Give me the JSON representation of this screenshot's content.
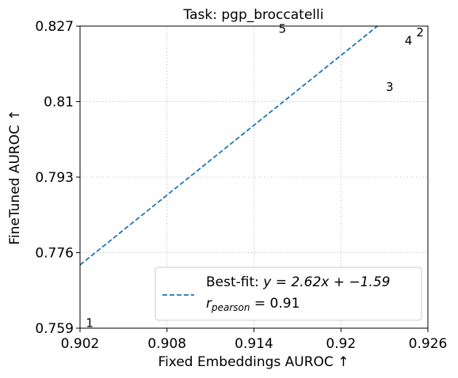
{
  "chart_data": {
    "type": "scatter",
    "title": "Task: pgp_broccatelli",
    "xlabel": "Fixed Embeddings AUROC ↑",
    "ylabel": "FineTuned AUROC ↑",
    "xlim": [
      0.902,
      0.926
    ],
    "ylim": [
      0.759,
      0.827
    ],
    "xticks": [
      "0.902",
      "0.908",
      "0.914",
      "0.92",
      "0.926"
    ],
    "yticks": [
      "0.759",
      "0.776",
      "0.793",
      "0.81",
      "0.827"
    ],
    "grid": true,
    "points": [
      {
        "label": "1",
        "x": 0.9024,
        "y": 0.7593
      },
      {
        "label": "2",
        "x": 0.9252,
        "y": 0.8247
      },
      {
        "label": "3",
        "x": 0.9231,
        "y": 0.8124
      },
      {
        "label": "4",
        "x": 0.9244,
        "y": 0.8228
      },
      {
        "label": "5",
        "x": 0.9157,
        "y": 0.8255
      }
    ],
    "fit": {
      "slope": 2.62,
      "intercept": -1.59,
      "pearson_r": 0.91,
      "color": "#1f77b4",
      "style": "dashed"
    },
    "legend": {
      "placement": "lower-right",
      "fit_prefix": "Best-fit: ",
      "fit_text": "y = 2.62x + −1.59",
      "r_prefix": "r",
      "r_sub": "pearson",
      "r_suffix": " = 0.91"
    }
  }
}
